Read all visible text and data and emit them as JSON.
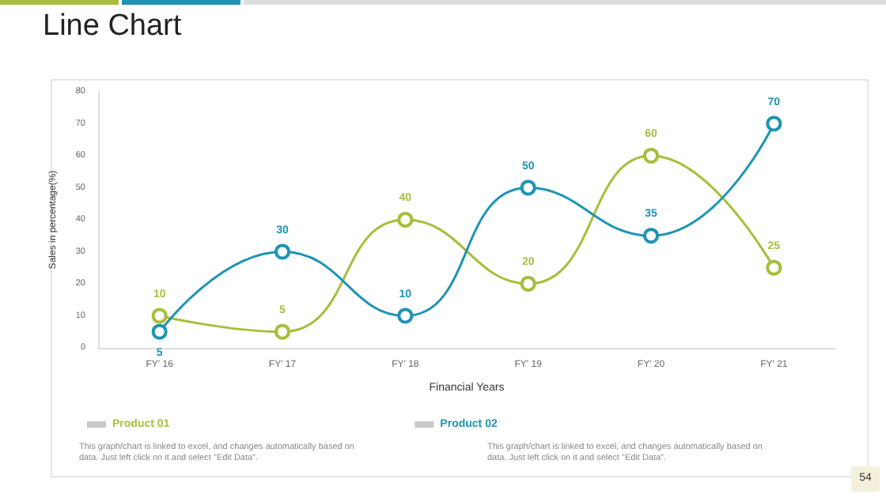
{
  "chart_data": {
    "type": "line",
    "title": "Line Chart",
    "xlabel": "Financial Years",
    "ylabel": "Sales in percentage(%)",
    "categories": [
      "FY' 16",
      "FY' 17",
      "FY' 18",
      "FY' 19",
      "FY' 20",
      "FY' 21"
    ],
    "series": [
      {
        "name": "Product 01",
        "color": "#a9bd3a",
        "values": [
          10,
          5,
          40,
          20,
          60,
          25
        ]
      },
      {
        "name": "Product 02",
        "color": "#1e94b4",
        "values": [
          5,
          30,
          10,
          50,
          35,
          70
        ]
      }
    ],
    "ylim": [
      0,
      80
    ],
    "yticks": [
      0,
      10,
      20,
      30,
      40,
      50,
      60,
      70,
      80
    ],
    "grid": false,
    "legend": "bottom",
    "marker": "circle",
    "line_style": "solid",
    "data_labels": true,
    "annotations": [
      "This graph/chart is linked to excel, and changes automatically based on data. Just left click on it and select \"Edit Data\".",
      "This graph/chart is linked to excel, and changes automatically based on data. Just left click on it and select \"Edit Data\".",
      "54"
    ]
  }
}
